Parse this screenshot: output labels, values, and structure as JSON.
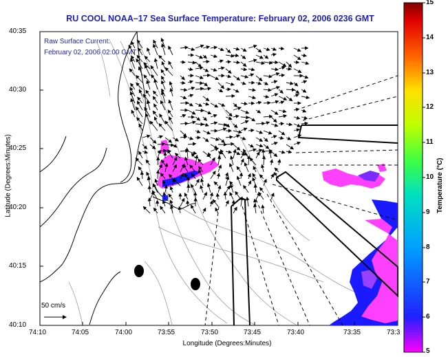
{
  "title": "RU COOL  NOAA–17  Sea Surface Temperature:  February 02, 2006 0236 GMT",
  "legend": {
    "line1": "Raw Surface Current:",
    "line2": "February 02, 2006 02:00 GMT"
  },
  "axes": {
    "xlabel": "Longitude (Degrees:Minutes)",
    "ylabel": "Latitude (Degrees:Minutes)",
    "xticks": [
      "74:10",
      "74:05",
      "74:00",
      "73:55",
      "73:50",
      "73:45",
      "73:40",
      "73:35",
      "73:3"
    ],
    "yticks": [
      "40:35",
      "40:30",
      "40:25",
      "40:20",
      "40:15",
      "40:10"
    ]
  },
  "scale": {
    "label": "50 cm/s"
  },
  "colorbar": {
    "label": "Temperature (°C)",
    "min": 5,
    "max": 15,
    "ticks": [
      "15",
      "14",
      "13",
      "12",
      "11",
      "10",
      "9",
      "8",
      "7",
      "6",
      "5"
    ]
  }
}
